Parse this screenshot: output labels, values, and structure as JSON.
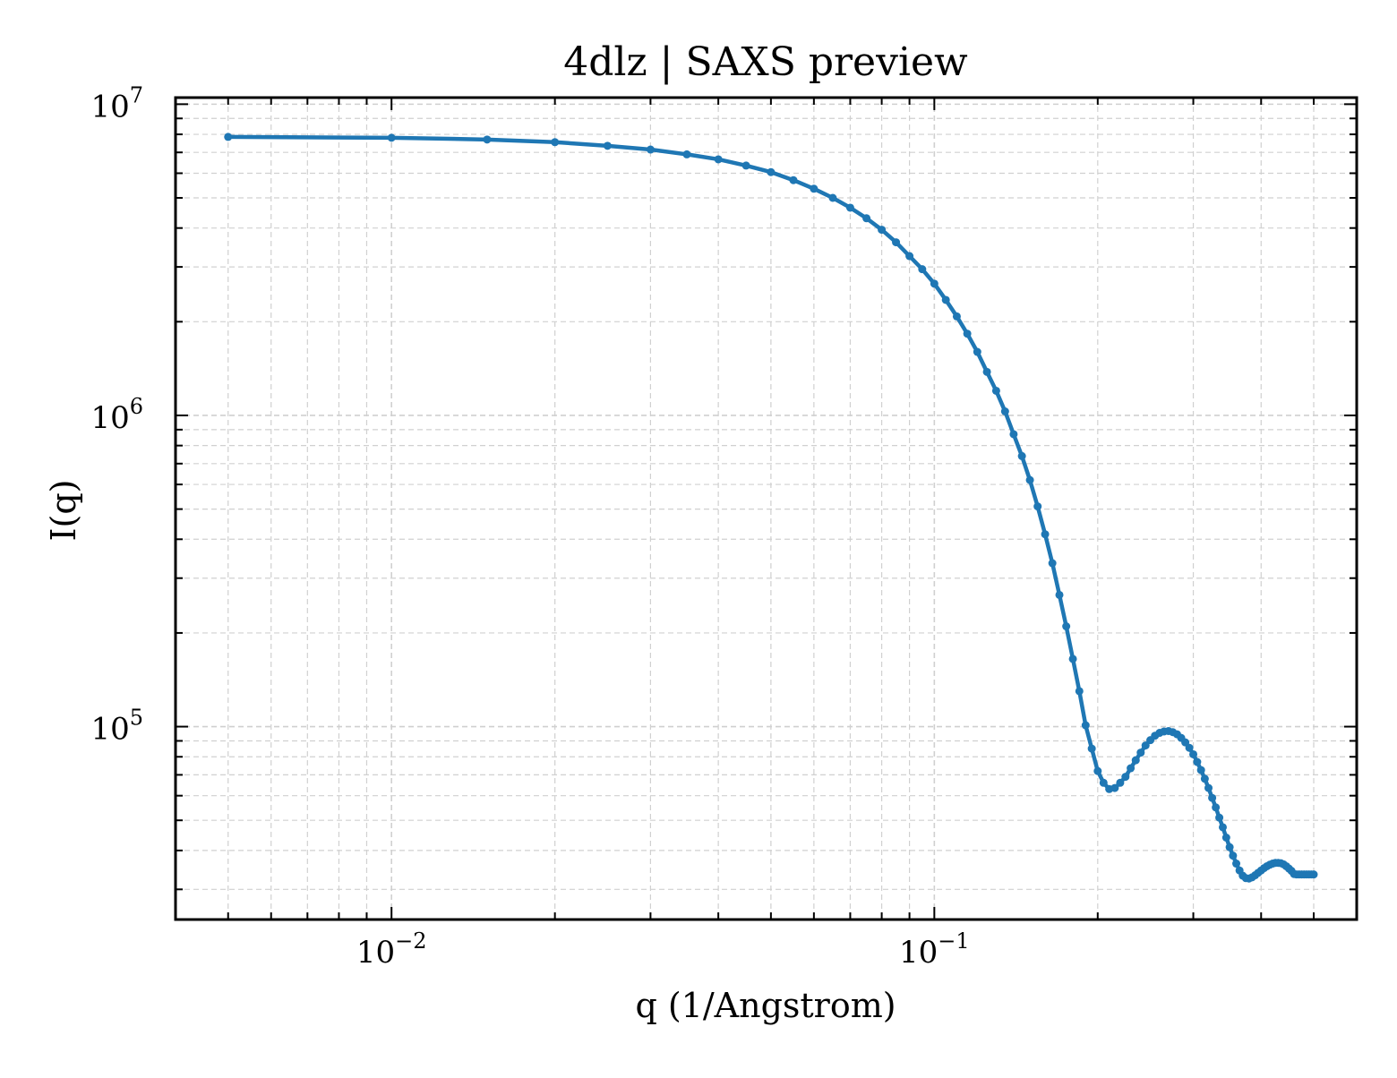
{
  "chart_data": {
    "type": "line",
    "title": "4dlz | SAXS preview",
    "xlabel": "q (1/Angstrom)",
    "ylabel": "I(q)",
    "xscale": "log",
    "yscale": "log",
    "xlim": [
      0.004,
      0.6
    ],
    "ylim": [
      24000,
      10500000
    ],
    "grid": true,
    "x_ticks": [
      {
        "value": 0.01,
        "base": "10",
        "exp": "−2"
      },
      {
        "value": 0.1,
        "base": "10",
        "exp": "−1"
      }
    ],
    "y_ticks": [
      {
        "value": 100000,
        "base": "10",
        "exp": "5"
      },
      {
        "value": 1000000,
        "base": "10",
        "exp": "6"
      },
      {
        "value": 10000000,
        "base": "10",
        "exp": "7"
      }
    ],
    "series": [
      {
        "color": "#1f77b4",
        "x": [
          0.005,
          0.01,
          0.015,
          0.02,
          0.025,
          0.03,
          0.035,
          0.04,
          0.045,
          0.05,
          0.055,
          0.06,
          0.065,
          0.07,
          0.075,
          0.08,
          0.085,
          0.09,
          0.095,
          0.1,
          0.105,
          0.11,
          0.115,
          0.12,
          0.125,
          0.13,
          0.135,
          0.14,
          0.145,
          0.15,
          0.155,
          0.16,
          0.165,
          0.17,
          0.175,
          0.18,
          0.185,
          0.19,
          0.195,
          0.2,
          0.205,
          0.21,
          0.215,
          0.22,
          0.225,
          0.23,
          0.235,
          0.24,
          0.245,
          0.25,
          0.255,
          0.26,
          0.265,
          0.27,
          0.275,
          0.28,
          0.285,
          0.29,
          0.295,
          0.3,
          0.305,
          0.31,
          0.315,
          0.32,
          0.325,
          0.33,
          0.335,
          0.34,
          0.345,
          0.35,
          0.355,
          0.36,
          0.365,
          0.37,
          0.375,
          0.38,
          0.385,
          0.39,
          0.395,
          0.4,
          0.405,
          0.41,
          0.415,
          0.42,
          0.425,
          0.43,
          0.435,
          0.44,
          0.445,
          0.45,
          0.455,
          0.46,
          0.465,
          0.47,
          0.475,
          0.48,
          0.485,
          0.49,
          0.495,
          0.5
        ],
        "y": [
          7850000,
          7800000,
          7700000,
          7550000,
          7350000,
          7150000,
          6900000,
          6650000,
          6350000,
          6050000,
          5700000,
          5350000,
          5000000,
          4650000,
          4300000,
          3950000,
          3600000,
          3250000,
          2950000,
          2650000,
          2350000,
          2080000,
          1830000,
          1600000,
          1380000,
          1200000,
          1030000,
          870000,
          740000,
          620000,
          510000,
          415000,
          335000,
          265000,
          210000,
          165000,
          130000,
          101000,
          85000,
          72000,
          66000,
          63000,
          63500,
          66000,
          69000,
          73500,
          78000,
          82500,
          87000,
          90500,
          93500,
          95500,
          96500,
          96800,
          96000,
          94500,
          92000,
          89000,
          85500,
          81500,
          77000,
          72500,
          68000,
          63500,
          59000,
          55000,
          51000,
          47500,
          44000,
          41000,
          38500,
          36300,
          34500,
          33200,
          32600,
          32500,
          32800,
          33300,
          33900,
          34500,
          35100,
          35600,
          36000,
          36300,
          36500,
          36500,
          36400,
          36100,
          35600,
          35000,
          34400,
          33600,
          33500,
          33500,
          33500,
          33500,
          33500,
          33500,
          33500,
          33500
        ]
      }
    ]
  }
}
